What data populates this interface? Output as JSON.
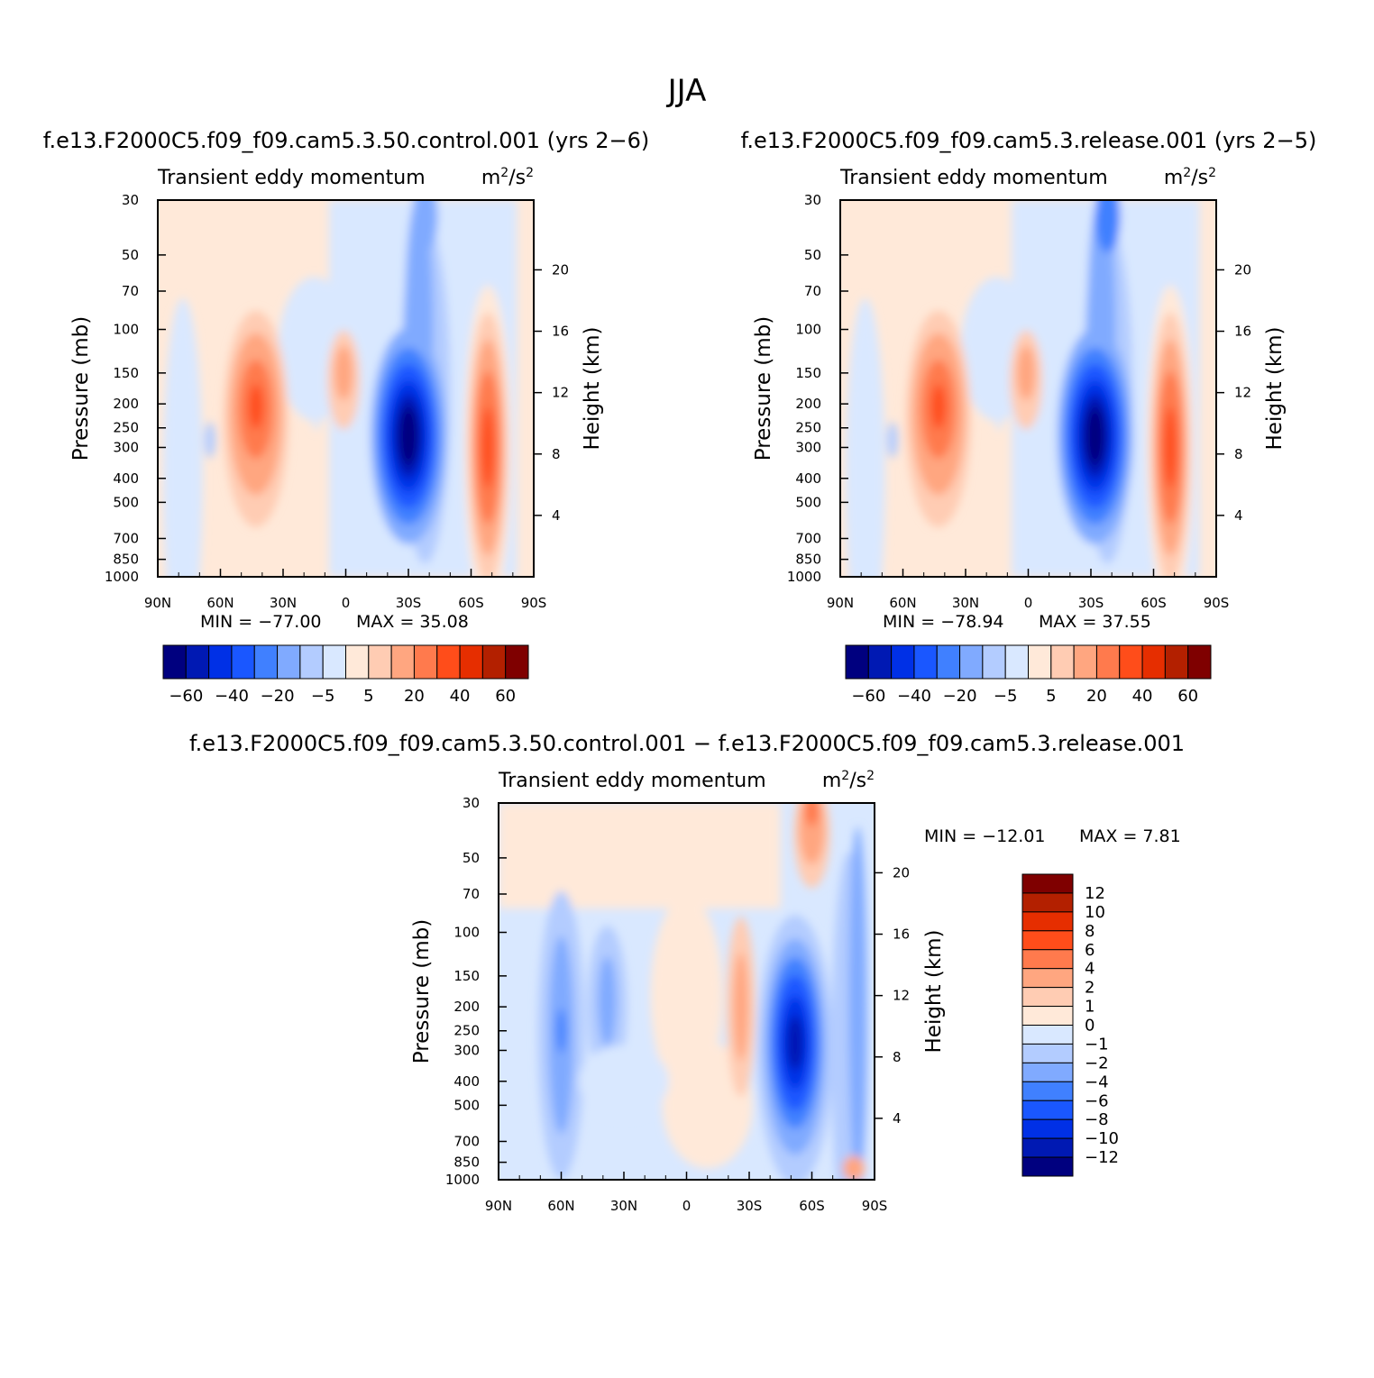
{
  "figure": {
    "title": "JJA",
    "colors": {
      "abs": [
        "#00007f",
        "#0019b3",
        "#0030e6",
        "#1a57ff",
        "#4080ff",
        "#80aaff",
        "#b3ccff",
        "#d9e8ff",
        "#ffe9d9",
        "#ffccb3",
        "#ffa680",
        "#ff7a4d",
        "#ff4d1a",
        "#e62e00",
        "#b32000",
        "#7f0000"
      ],
      "diff": [
        "#00007f",
        "#0019b3",
        "#0030e6",
        "#1a57ff",
        "#4080ff",
        "#80aaff",
        "#b3ccff",
        "#d9e8ff",
        "#ffe9d9",
        "#ffccb3",
        "#ffa680",
        "#ff7a4d",
        "#ff4d1a",
        "#e62e00",
        "#b32000",
        "#7f0000"
      ]
    }
  },
  "chart_data": [
    {
      "type": "heatmap",
      "title": "f.e13.F2000C5.f09_f09.cam5.3.50.control.001  (yrs  2−6)",
      "subtitle": "Transient  eddy  momentum",
      "units": "m²/s²",
      "ylabel": "Pressure  (mb)",
      "ylabel_right": "Height  (km)",
      "x_ticks": [
        "90N",
        "60N",
        "30N",
        "0",
        "30S",
        "60S",
        "90S"
      ],
      "y_ticks": [
        "30",
        "50",
        "70",
        "100",
        "150",
        "200",
        "250",
        "300",
        "400",
        "500",
        "700",
        "850",
        "1000"
      ],
      "y_ticks_right": [
        "20",
        "16",
        "12",
        "8",
        "4"
      ],
      "stats": {
        "min_label": "MIN  =  −77.00",
        "max_label": "MAX  =    35.08",
        "min": -77.0,
        "max": 35.08
      },
      "levels": [
        "−60",
        "−40",
        "−20",
        "−5",
        "5",
        "20",
        "40",
        "60"
      ],
      "features": [
        {
          "lat": -30,
          "pressure": 270,
          "value": -77
        },
        {
          "lat": -68,
          "pressure": 300,
          "value": 35
        },
        {
          "lat": 43,
          "pressure": 210,
          "value": 30
        },
        {
          "lat": 0,
          "pressure": 150,
          "value": 15
        }
      ]
    },
    {
      "type": "heatmap",
      "title": "f.e13.F2000C5.f09_f09.cam5.3.release.001  (yrs  2−5)",
      "subtitle": "Transient  eddy  momentum",
      "units": "m²/s²",
      "ylabel": "Pressure  (mb)",
      "ylabel_right": "Height  (km)",
      "x_ticks": [
        "90N",
        "60N",
        "30N",
        "0",
        "30S",
        "60S",
        "90S"
      ],
      "y_ticks": [
        "30",
        "50",
        "70",
        "100",
        "150",
        "200",
        "250",
        "300",
        "400",
        "500",
        "700",
        "850",
        "1000"
      ],
      "y_ticks_right": [
        "20",
        "16",
        "12",
        "8",
        "4"
      ],
      "stats": {
        "min_label": "MIN  =  −78.94",
        "max_label": "MAX  =    37.55",
        "min": -78.94,
        "max": 37.55
      },
      "levels": [
        "−60",
        "−40",
        "−20",
        "−5",
        "5",
        "20",
        "40",
        "60"
      ],
      "features": [
        {
          "lat": -32,
          "pressure": 260,
          "value": -79
        },
        {
          "lat": -68,
          "pressure": 300,
          "value": 37
        },
        {
          "lat": 43,
          "pressure": 210,
          "value": 32
        },
        {
          "lat": 0,
          "pressure": 150,
          "value": 16
        }
      ]
    },
    {
      "type": "heatmap",
      "title": "f.e13.F2000C5.f09_f09.cam5.3.50.control.001  −  f.e13.F2000C5.f09_f09.cam5.3.release.001",
      "subtitle": "Transient  eddy  momentum",
      "units": "m²/s²",
      "ylabel": "Pressure  (mb)",
      "ylabel_right": "Height  (km)",
      "x_ticks": [
        "90N",
        "60N",
        "30N",
        "0",
        "30S",
        "60S",
        "90S"
      ],
      "y_ticks": [
        "30",
        "50",
        "70",
        "100",
        "150",
        "200",
        "250",
        "300",
        "400",
        "500",
        "700",
        "850",
        "1000"
      ],
      "y_ticks_right": [
        "20",
        "16",
        "12",
        "8",
        "4"
      ],
      "stats": {
        "min_label": "MIN  =  −12.01",
        "max_label": "MAX  =     7.81",
        "min": -12.01,
        "max": 7.81
      },
      "levels": [
        "12",
        "10",
        "8",
        "6",
        "4",
        "2",
        "1",
        "0",
        "−1",
        "−2",
        "−4",
        "−6",
        "−8",
        "−10",
        "−12"
      ],
      "features": [
        {
          "lat": -52,
          "pressure": 280,
          "value": -12
        },
        {
          "lat": -60,
          "pressure": 35,
          "value": 7.8
        },
        {
          "lat": -28,
          "pressure": 200,
          "value": 4
        },
        {
          "lat": 60,
          "pressure": 250,
          "value": -6
        }
      ]
    }
  ]
}
